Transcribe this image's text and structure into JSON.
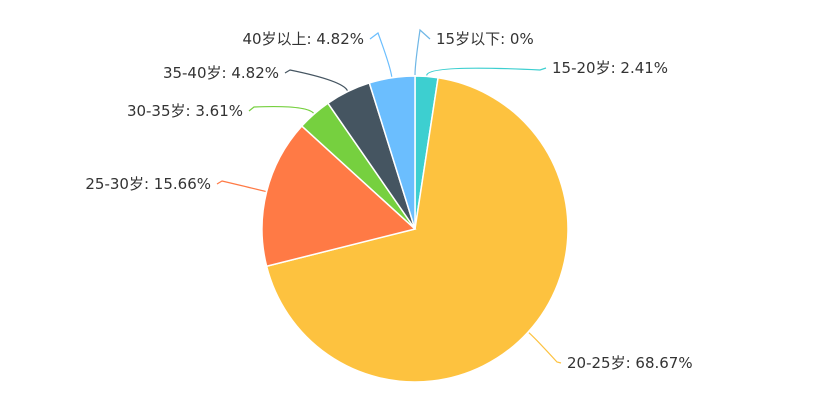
{
  "chart_data": {
    "type": "pie",
    "title": "",
    "series": [
      {
        "name": "",
        "slices": [
          {
            "label": "15岁以下",
            "value": 0,
            "percent_text": "0%",
            "color": "#6fb7e6"
          },
          {
            "label": "15-20岁",
            "value": 2.41,
            "percent_text": "2.41%",
            "color": "#3dcfd0"
          },
          {
            "label": "20-25岁",
            "value": 68.67,
            "percent_text": "68.67%",
            "color": "#fdc23f"
          },
          {
            "label": "25-30岁",
            "value": 15.66,
            "percent_text": "15.66%",
            "color": "#ff7a45"
          },
          {
            "label": "30-35岁",
            "value": 3.61,
            "percent_text": "3.61%",
            "color": "#76d03f"
          },
          {
            "label": "35-40岁",
            "value": 4.82,
            "percent_text": "4.82%",
            "color": "#455561"
          },
          {
            "label": "40岁以上",
            "value": 4.82,
            "percent_text": "4.82%",
            "color": "#6bbefe"
          }
        ]
      }
    ],
    "legend": "none",
    "label_position": "outside"
  }
}
